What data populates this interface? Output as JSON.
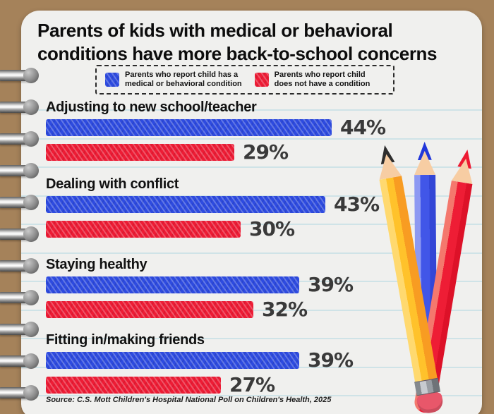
{
  "header": {
    "title": "Parents of kids with medical or behavioral conditions have more back-to-school concerns",
    "title_lines": [
      "Parents of kids with medical or behavioral",
      "conditions have more back-to-school concerns"
    ]
  },
  "legend": {
    "items": [
      {
        "label": "Parents who report child has a medical or behavioral condition",
        "label_lines": [
          "Parents who report child has a",
          "medical or behavioral condition"
        ],
        "color": "#2e4be0"
      },
      {
        "label": "Parents who report child does not have a condition",
        "label_lines": [
          "Parents who report child",
          "does not have a condition"
        ],
        "color": "#ee1c35"
      }
    ]
  },
  "chart_data": {
    "type": "bar",
    "orientation": "horizontal",
    "unit": "%",
    "title": "Parents of kids with medical or behavioral conditions have more back-to-school concerns",
    "categories": [
      "Adjusting to new school/teacher",
      "Dealing with conflict",
      "Staying healthy",
      "Fitting in/making friends"
    ],
    "series": [
      {
        "name": "Parents who report child has a medical or behavioral condition",
        "color": "#2e4be0",
        "values": [
          44,
          43,
          39,
          39
        ]
      },
      {
        "name": "Parents who report child does not have a condition",
        "color": "#ee1c35",
        "values": [
          29,
          30,
          32,
          27
        ]
      }
    ],
    "xlim": [
      0,
      50
    ],
    "value_labels": true,
    "legend_position": "top",
    "grid": false
  },
  "footer": {
    "source": "Source: C.S. Mott Children's Hospital National Poll on Children's Health, 2025"
  },
  "colors": {
    "background": "#a5825a",
    "paper": "#f0f0ee",
    "ruled_line": "#cfe3e7",
    "series_blue": "#2e4be0",
    "series_red": "#ee1c35",
    "title_text": "#0d0d0d",
    "value_text": "#3a3a3a"
  },
  "decor": {
    "style": "spiral-notebook",
    "binding_rings": 11,
    "pencils": [
      "yellow-pencil",
      "blue-pencil",
      "red-pencil"
    ]
  }
}
